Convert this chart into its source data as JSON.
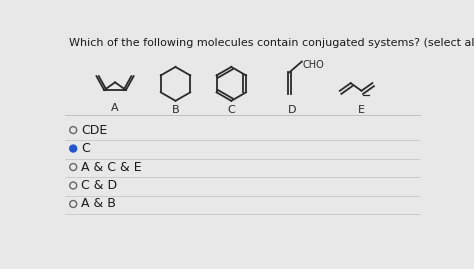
{
  "title": "Which of the following molecules contain conjugated systems? (select all that apply)",
  "title_fontsize": 8.0,
  "bg_color": "#e8e8e8",
  "options": [
    "CDE",
    "C",
    "A & C & E",
    "C & D",
    "A & B"
  ],
  "selected_index": 1,
  "molecule_labels": [
    "A",
    "B",
    "C",
    "D",
    "E"
  ],
  "divider_color": "#c0c0c0",
  "text_color": "#1a1a1a",
  "radio_color": "#666666",
  "selected_radio_color": "#2255cc",
  "mol_color": "#2a2a2a",
  "mol_lw": 1.3
}
